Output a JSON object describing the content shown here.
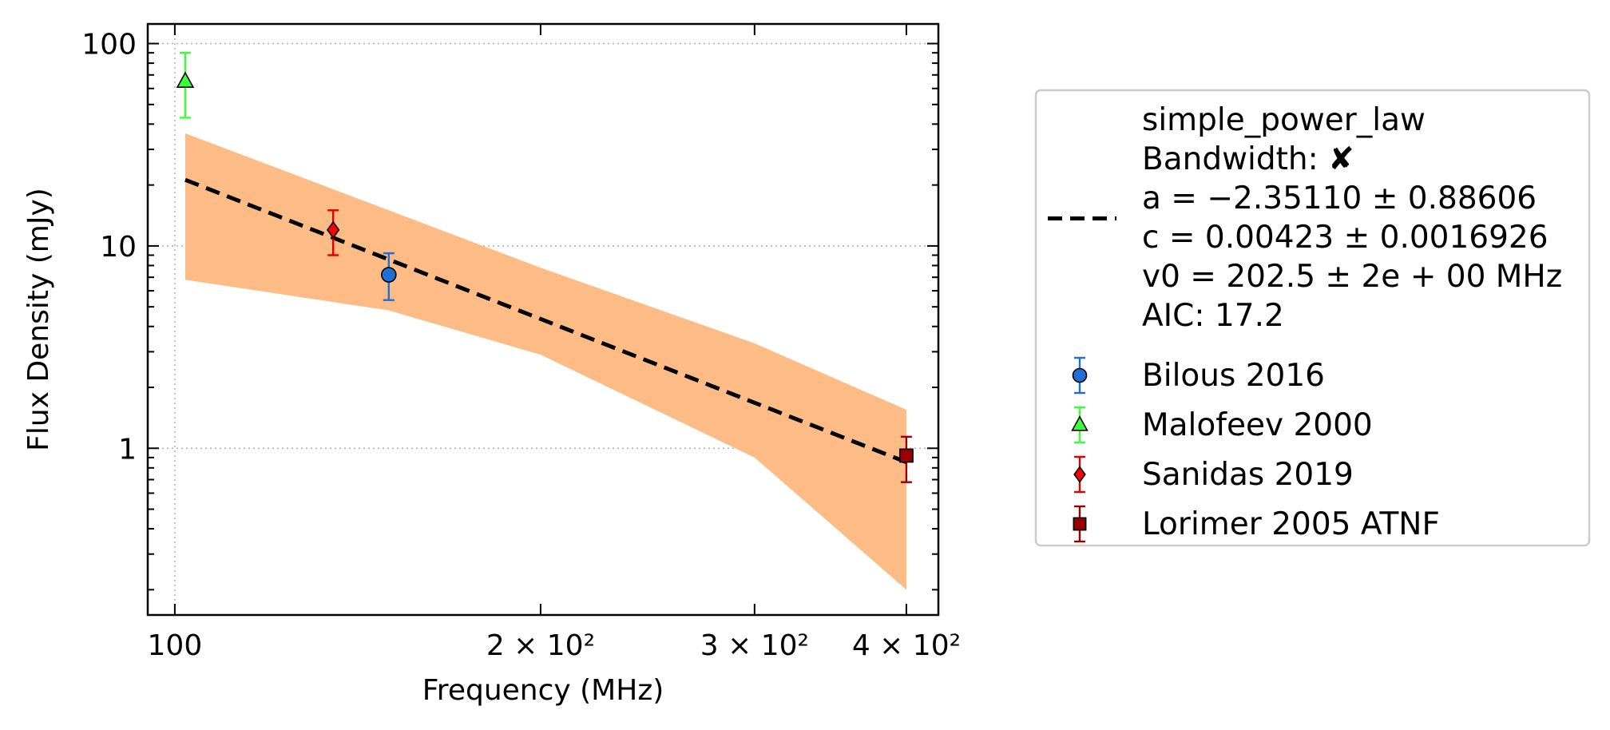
{
  "chart_data": {
    "type": "scatter",
    "xlabel": "Frequency (MHz)",
    "ylabel": "Flux Density (mJy)",
    "xscale": "log",
    "yscale": "log",
    "xlim": [
      95,
      425
    ],
    "ylim": [
      0.15,
      125
    ],
    "grid": "major, dotted",
    "x_ticks": [
      {
        "value": 100,
        "label": "100"
      },
      {
        "value": 200,
        "label": "2 × 10²"
      },
      {
        "value": 300,
        "label": "3 × 10²"
      },
      {
        "value": 400,
        "label": "4 × 10²"
      }
    ],
    "y_ticks": [
      {
        "value": 1,
        "label": "1"
      },
      {
        "value": 10,
        "label": "10"
      },
      {
        "value": 100,
        "label": "100"
      }
    ],
    "legend_position": "outside-right",
    "fit": {
      "model": "simple_power_law",
      "legend_lines": [
        "simple_power_law",
        "Bandwidth: ✘",
        "a = −2.35110 ± 0.88606",
        "c = 0.00423 ± 0.0016926",
        "v0 = 202.5 ± 2e + 00 MHz",
        "AIC: 17.2"
      ],
      "a": -2.3511,
      "c": 0.00423,
      "v0": 202.5,
      "x_range": [
        102,
        400
      ],
      "line_color": "#000000",
      "band_color": "#fdbc85",
      "band_upper": [
        [
          102,
          36
        ],
        [
          150,
          15
        ],
        [
          200,
          7.8
        ],
        [
          300,
          3.3
        ],
        [
          400,
          1.55
        ]
      ],
      "band_lower": [
        [
          102,
          6.8
        ],
        [
          150,
          4.8
        ],
        [
          200,
          2.9
        ],
        [
          300,
          0.9
        ],
        [
          400,
          0.2
        ]
      ]
    },
    "series": [
      {
        "name": "Bilous 2016",
        "marker": "circle",
        "color": "#1f6fd6",
        "err_color": "#1f6fd6",
        "points": [
          {
            "x": 150,
            "y": 7.2,
            "ylo": 5.4,
            "yhi": 9.2
          }
        ]
      },
      {
        "name": "Malofeev 2000",
        "marker": "triangle",
        "color": "#3bff3b",
        "err_color": "#3bff3b",
        "points": [
          {
            "x": 102,
            "y": 65,
            "ylo": 43,
            "yhi": 90
          }
        ]
      },
      {
        "name": "Sanidas 2019",
        "marker": "diamond",
        "color": "#ff0000",
        "err_color": "#e00000",
        "points": [
          {
            "x": 135,
            "y": 12,
            "ylo": 9,
            "yhi": 15
          }
        ]
      },
      {
        "name": "Lorimer 2005 ATNF",
        "marker": "square",
        "color": "#9a0000",
        "err_color": "#9a0000",
        "points": [
          {
            "x": 400,
            "y": 0.92,
            "ylo": 0.68,
            "yhi": 1.14
          }
        ]
      }
    ]
  }
}
